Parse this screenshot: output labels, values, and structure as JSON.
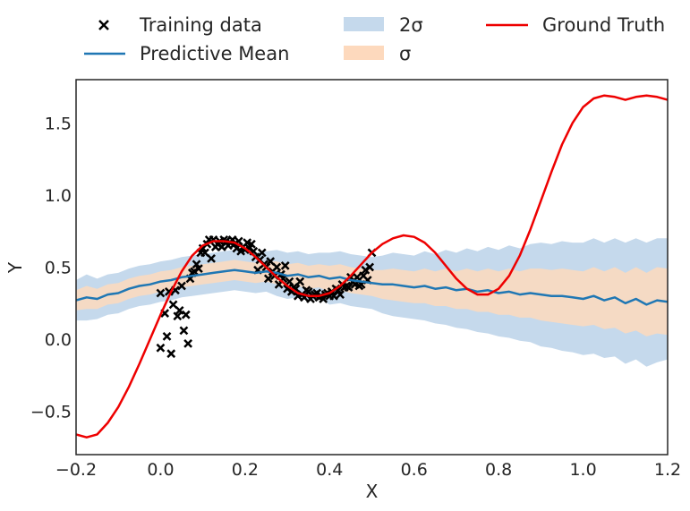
{
  "chart_data": {
    "type": "line",
    "title": "",
    "xlabel": "X",
    "ylabel": "Y",
    "xlim": [
      -0.2,
      1.2
    ],
    "ylim": [
      -0.8,
      1.8
    ],
    "xticks": [
      -0.2,
      0.0,
      0.2,
      0.4,
      0.6,
      0.8,
      1.0,
      1.2
    ],
    "xtick_labels": [
      "−0.2",
      "0.0",
      "0.2",
      "0.4",
      "0.6",
      "0.8",
      "1.0",
      "1.2"
    ],
    "yticks": [
      -0.5,
      0.0,
      0.5,
      1.0,
      1.5
    ],
    "ytick_labels": [
      "−0.5",
      "0.0",
      "0.5",
      "1.0",
      "1.5"
    ],
    "grid": false,
    "legend_position": "top, above plot, 3 columns",
    "legend": [
      {
        "label": "Training data",
        "kind": "marker",
        "color": "#000000"
      },
      {
        "label": "Predictive Mean",
        "kind": "line",
        "color": "#1f77b4"
      },
      {
        "label": "2σ",
        "kind": "patch",
        "color": "#c5d9ec"
      },
      {
        "label": "σ",
        "kind": "patch",
        "color": "#fdd9bd"
      },
      {
        "label": "Ground Truth",
        "kind": "line",
        "color": "#ee0000"
      }
    ],
    "colors": {
      "training": "#000000",
      "mean": "#1f77b4",
      "two_sigma": "#c5d9ec",
      "one_sigma": "#fdd9bd",
      "ground_truth": "#ee0000"
    },
    "series": [
      {
        "name": "Training data",
        "type": "scatter",
        "marker": "x",
        "x": [
          0.0,
          0.0,
          0.01,
          0.015,
          0.02,
          0.025,
          0.03,
          0.035,
          0.04,
          0.045,
          0.05,
          0.055,
          0.06,
          0.065,
          0.07,
          0.075,
          0.08,
          0.085,
          0.09,
          0.095,
          0.1,
          0.105,
          0.11,
          0.115,
          0.12,
          0.125,
          0.13,
          0.135,
          0.14,
          0.145,
          0.15,
          0.155,
          0.16,
          0.165,
          0.17,
          0.175,
          0.18,
          0.185,
          0.19,
          0.195,
          0.2,
          0.205,
          0.21,
          0.215,
          0.22,
          0.225,
          0.23,
          0.235,
          0.24,
          0.245,
          0.25,
          0.255,
          0.26,
          0.265,
          0.27,
          0.275,
          0.28,
          0.285,
          0.29,
          0.295,
          0.3,
          0.305,
          0.31,
          0.315,
          0.32,
          0.325,
          0.33,
          0.335,
          0.34,
          0.345,
          0.35,
          0.355,
          0.36,
          0.365,
          0.37,
          0.375,
          0.38,
          0.385,
          0.39,
          0.395,
          0.4,
          0.405,
          0.41,
          0.415,
          0.42,
          0.425,
          0.43,
          0.435,
          0.44,
          0.445,
          0.45,
          0.455,
          0.46,
          0.465,
          0.47,
          0.475,
          0.48,
          0.485,
          0.49,
          0.495,
          0.5
        ],
        "y": [
          -0.06,
          0.32,
          0.18,
          0.02,
          0.33,
          -0.1,
          0.24,
          0.34,
          0.16,
          0.2,
          0.37,
          0.06,
          0.17,
          -0.03,
          0.42,
          0.46,
          0.47,
          0.52,
          0.49,
          0.6,
          0.63,
          0.6,
          0.66,
          0.69,
          0.56,
          0.69,
          0.64,
          0.66,
          0.68,
          0.64,
          0.69,
          0.68,
          0.65,
          0.67,
          0.69,
          0.66,
          0.63,
          0.68,
          0.61,
          0.64,
          0.62,
          0.67,
          0.63,
          0.66,
          0.61,
          0.57,
          0.48,
          0.55,
          0.6,
          0.52,
          0.5,
          0.42,
          0.54,
          0.47,
          0.44,
          0.5,
          0.38,
          0.45,
          0.42,
          0.51,
          0.35,
          0.4,
          0.33,
          0.36,
          0.35,
          0.3,
          0.4,
          0.31,
          0.29,
          0.34,
          0.33,
          0.28,
          0.3,
          0.31,
          0.32,
          0.29,
          0.3,
          0.28,
          0.31,
          0.32,
          0.3,
          0.33,
          0.3,
          0.35,
          0.34,
          0.31,
          0.38,
          0.36,
          0.37,
          0.36,
          0.43,
          0.4,
          0.38,
          0.43,
          0.37,
          0.38,
          0.44,
          0.48,
          0.41,
          0.5,
          0.6
        ]
      },
      {
        "name": "Ground Truth",
        "type": "line",
        "x": [
          -0.2,
          -0.175,
          -0.15,
          -0.125,
          -0.1,
          -0.075,
          -0.05,
          -0.025,
          0.0,
          0.025,
          0.05,
          0.075,
          0.1,
          0.125,
          0.15,
          0.175,
          0.2,
          0.225,
          0.25,
          0.275,
          0.3,
          0.325,
          0.35,
          0.375,
          0.4,
          0.425,
          0.45,
          0.475,
          0.5,
          0.525,
          0.55,
          0.575,
          0.6,
          0.625,
          0.65,
          0.675,
          0.7,
          0.725,
          0.75,
          0.775,
          0.8,
          0.825,
          0.85,
          0.875,
          0.9,
          0.925,
          0.95,
          0.975,
          1.0,
          1.025,
          1.05,
          1.075,
          1.1,
          1.125,
          1.15,
          1.175,
          1.2
        ],
        "y": [
          -0.66,
          -0.68,
          -0.66,
          -0.58,
          -0.47,
          -0.33,
          -0.17,
          0.0,
          0.17,
          0.33,
          0.47,
          0.58,
          0.65,
          0.68,
          0.68,
          0.67,
          0.63,
          0.57,
          0.5,
          0.43,
          0.37,
          0.32,
          0.3,
          0.3,
          0.32,
          0.37,
          0.44,
          0.52,
          0.6,
          0.66,
          0.7,
          0.72,
          0.71,
          0.67,
          0.6,
          0.51,
          0.42,
          0.35,
          0.31,
          0.31,
          0.35,
          0.44,
          0.58,
          0.76,
          0.96,
          1.16,
          1.35,
          1.5,
          1.61,
          1.67,
          1.69,
          1.68,
          1.66,
          1.68,
          1.69,
          1.68,
          1.66
        ]
      },
      {
        "name": "Predictive Mean",
        "type": "line",
        "x": [
          -0.2,
          -0.175,
          -0.15,
          -0.125,
          -0.1,
          -0.075,
          -0.05,
          -0.025,
          0.0,
          0.025,
          0.05,
          0.075,
          0.1,
          0.125,
          0.15,
          0.175,
          0.2,
          0.225,
          0.25,
          0.275,
          0.3,
          0.325,
          0.35,
          0.375,
          0.4,
          0.425,
          0.45,
          0.475,
          0.5,
          0.525,
          0.55,
          0.575,
          0.6,
          0.625,
          0.65,
          0.675,
          0.7,
          0.725,
          0.75,
          0.775,
          0.8,
          0.825,
          0.85,
          0.875,
          0.9,
          0.925,
          0.95,
          0.975,
          1.0,
          1.025,
          1.05,
          1.075,
          1.1,
          1.125,
          1.15,
          1.175,
          1.2
        ],
        "y": [
          0.27,
          0.29,
          0.28,
          0.31,
          0.32,
          0.35,
          0.37,
          0.38,
          0.4,
          0.41,
          0.43,
          0.44,
          0.45,
          0.46,
          0.47,
          0.48,
          0.47,
          0.46,
          0.47,
          0.46,
          0.44,
          0.45,
          0.43,
          0.44,
          0.42,
          0.43,
          0.41,
          0.4,
          0.39,
          0.38,
          0.38,
          0.37,
          0.36,
          0.37,
          0.35,
          0.36,
          0.34,
          0.35,
          0.33,
          0.34,
          0.32,
          0.33,
          0.31,
          0.32,
          0.31,
          0.3,
          0.3,
          0.29,
          0.28,
          0.3,
          0.27,
          0.29,
          0.25,
          0.28,
          0.24,
          0.27,
          0.26
        ]
      },
      {
        "name": "σ",
        "type": "band",
        "x": [
          -0.2,
          -0.175,
          -0.15,
          -0.125,
          -0.1,
          -0.075,
          -0.05,
          -0.025,
          0.0,
          0.025,
          0.05,
          0.075,
          0.1,
          0.125,
          0.15,
          0.175,
          0.2,
          0.225,
          0.25,
          0.275,
          0.3,
          0.325,
          0.35,
          0.375,
          0.4,
          0.425,
          0.45,
          0.475,
          0.5,
          0.525,
          0.55,
          0.575,
          0.6,
          0.625,
          0.65,
          0.675,
          0.7,
          0.725,
          0.75,
          0.775,
          0.8,
          0.825,
          0.85,
          0.875,
          0.9,
          0.925,
          0.95,
          0.975,
          1.0,
          1.025,
          1.05,
          1.075,
          1.1,
          1.125,
          1.15,
          1.175,
          1.2
        ],
        "lower": [
          0.2,
          0.21,
          0.21,
          0.24,
          0.25,
          0.28,
          0.3,
          0.31,
          0.33,
          0.34,
          0.36,
          0.37,
          0.38,
          0.39,
          0.4,
          0.41,
          0.4,
          0.39,
          0.4,
          0.38,
          0.36,
          0.37,
          0.35,
          0.36,
          0.33,
          0.34,
          0.32,
          0.31,
          0.3,
          0.28,
          0.27,
          0.26,
          0.25,
          0.25,
          0.23,
          0.23,
          0.21,
          0.21,
          0.19,
          0.19,
          0.17,
          0.17,
          0.15,
          0.15,
          0.13,
          0.12,
          0.11,
          0.1,
          0.09,
          0.1,
          0.07,
          0.08,
          0.04,
          0.06,
          0.02,
          0.04,
          0.03
        ],
        "upper": [
          0.34,
          0.37,
          0.35,
          0.38,
          0.39,
          0.42,
          0.44,
          0.45,
          0.47,
          0.48,
          0.5,
          0.51,
          0.52,
          0.53,
          0.54,
          0.55,
          0.54,
          0.53,
          0.54,
          0.54,
          0.52,
          0.53,
          0.51,
          0.52,
          0.51,
          0.52,
          0.5,
          0.49,
          0.48,
          0.48,
          0.49,
          0.48,
          0.47,
          0.49,
          0.47,
          0.49,
          0.47,
          0.49,
          0.47,
          0.49,
          0.47,
          0.49,
          0.47,
          0.49,
          0.49,
          0.48,
          0.49,
          0.48,
          0.47,
          0.5,
          0.47,
          0.5,
          0.46,
          0.5,
          0.46,
          0.5,
          0.49
        ]
      },
      {
        "name": "2σ",
        "type": "band",
        "x": [
          -0.2,
          -0.175,
          -0.15,
          -0.125,
          -0.1,
          -0.075,
          -0.05,
          -0.025,
          0.0,
          0.025,
          0.05,
          0.075,
          0.1,
          0.125,
          0.15,
          0.175,
          0.2,
          0.225,
          0.25,
          0.275,
          0.3,
          0.325,
          0.35,
          0.375,
          0.4,
          0.425,
          0.45,
          0.475,
          0.5,
          0.525,
          0.55,
          0.575,
          0.6,
          0.625,
          0.65,
          0.675,
          0.7,
          0.725,
          0.75,
          0.775,
          0.8,
          0.825,
          0.85,
          0.875,
          0.9,
          0.925,
          0.95,
          0.975,
          1.0,
          1.025,
          1.05,
          1.075,
          1.1,
          1.125,
          1.15,
          1.175,
          1.2
        ],
        "lower": [
          0.13,
          0.13,
          0.14,
          0.17,
          0.18,
          0.21,
          0.23,
          0.24,
          0.26,
          0.27,
          0.29,
          0.3,
          0.31,
          0.32,
          0.33,
          0.34,
          0.33,
          0.32,
          0.33,
          0.3,
          0.28,
          0.29,
          0.27,
          0.28,
          0.24,
          0.25,
          0.23,
          0.22,
          0.21,
          0.18,
          0.16,
          0.15,
          0.14,
          0.13,
          0.11,
          0.1,
          0.08,
          0.07,
          0.05,
          0.04,
          0.02,
          0.01,
          -0.01,
          -0.02,
          -0.05,
          -0.06,
          -0.08,
          -0.09,
          -0.11,
          -0.1,
          -0.13,
          -0.12,
          -0.17,
          -0.14,
          -0.19,
          -0.16,
          -0.14
        ],
        "upper": [
          0.41,
          0.45,
          0.42,
          0.45,
          0.46,
          0.49,
          0.51,
          0.52,
          0.54,
          0.55,
          0.57,
          0.58,
          0.59,
          0.6,
          0.61,
          0.62,
          0.61,
          0.6,
          0.61,
          0.62,
          0.6,
          0.61,
          0.59,
          0.6,
          0.6,
          0.61,
          0.59,
          0.58,
          0.57,
          0.58,
          0.6,
          0.59,
          0.58,
          0.61,
          0.59,
          0.62,
          0.6,
          0.63,
          0.61,
          0.64,
          0.62,
          0.65,
          0.63,
          0.66,
          0.67,
          0.66,
          0.68,
          0.67,
          0.67,
          0.7,
          0.67,
          0.7,
          0.67,
          0.7,
          0.67,
          0.7,
          0.7
        ]
      }
    ]
  }
}
